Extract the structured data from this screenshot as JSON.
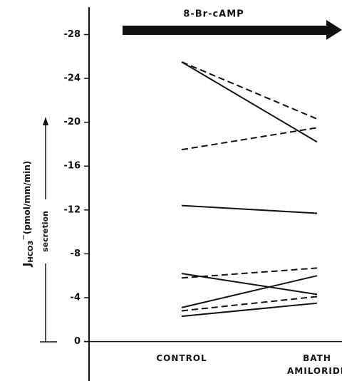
{
  "chart_data": {
    "type": "paired-line",
    "annotation": "8-Br-cAMP",
    "y_label": {
      "symbol": "J",
      "subscript": "HCO3",
      "superscript": "−",
      "units": "(pmol/mm/min)"
    },
    "arrow_label": "secretion",
    "categories": [
      "CONTROL",
      "BATH AMILORIDE"
    ],
    "ylim": [
      3.6,
      -30.5
    ],
    "yticks": [
      0,
      -4,
      -8,
      -12,
      -16,
      -20,
      -24,
      -28
    ],
    "color": "#111111",
    "series": [
      {
        "style": "solid",
        "values": [
          -25.5,
          -18.2
        ]
      },
      {
        "style": "dashed",
        "values": [
          -25.5,
          -20.3
        ]
      },
      {
        "style": "dashed",
        "values": [
          -17.5,
          -19.5
        ]
      },
      {
        "style": "solid",
        "values": [
          -12.4,
          -11.7
        ]
      },
      {
        "style": "solid",
        "values": [
          -6.2,
          -4.3
        ]
      },
      {
        "style": "dashed",
        "values": [
          -5.8,
          -6.7
        ]
      },
      {
        "style": "solid",
        "values": [
          -3.1,
          -6.0
        ]
      },
      {
        "style": "dashed",
        "values": [
          -2.8,
          -4.1
        ]
      },
      {
        "style": "solid",
        "values": [
          -2.3,
          -3.5
        ]
      }
    ]
  }
}
